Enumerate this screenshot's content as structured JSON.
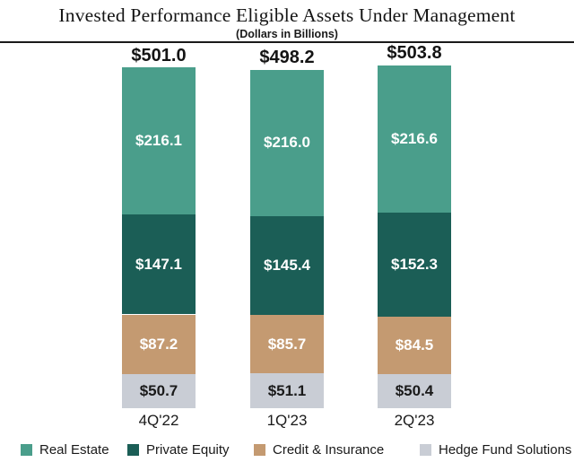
{
  "header": {
    "title": "Invested Performance Eligible Assets Under Management",
    "subtitle": "(Dollars in Billions)"
  },
  "chart_data": {
    "type": "bar",
    "stacked": true,
    "title": "Invested Performance Eligible Assets Under Management",
    "subtitle": "(Dollars in Billions)",
    "unit": "USD billions",
    "categories": [
      "4Q'22",
      "1Q'23",
      "2Q'23"
    ],
    "series": [
      {
        "name": "Real Estate",
        "color": "#4a9e8b",
        "text_color": "#ffffff",
        "values": [
          216.1,
          216.0,
          216.6
        ],
        "labels": [
          "$216.1",
          "$216.0",
          "$216.6"
        ]
      },
      {
        "name": "Private Equity",
        "color": "#1b5e56",
        "text_color": "#ffffff",
        "values": [
          147.1,
          145.4,
          152.3
        ],
        "labels": [
          "$147.1",
          "$145.4",
          "$152.3"
        ]
      },
      {
        "name": "Credit & Insurance",
        "color": "#c49a71",
        "text_color": "#ffffff",
        "values": [
          87.2,
          85.7,
          84.5
        ],
        "labels": [
          "$87.2",
          "$85.7",
          "$84.5"
        ]
      },
      {
        "name": "Hedge Fund Solutions",
        "color": "#c9cdd5",
        "text_color": "#1a1a1a",
        "values": [
          50.7,
          51.1,
          50.4
        ],
        "labels": [
          "$50.7",
          "$51.1",
          "$50.4"
        ]
      }
    ],
    "totals": [
      501.0,
      498.2,
      503.8
    ],
    "total_labels": [
      "$501.0",
      "$498.2",
      "$503.8"
    ],
    "ylim": [
      0,
      510
    ],
    "grid": false,
    "legend_position": "bottom"
  }
}
